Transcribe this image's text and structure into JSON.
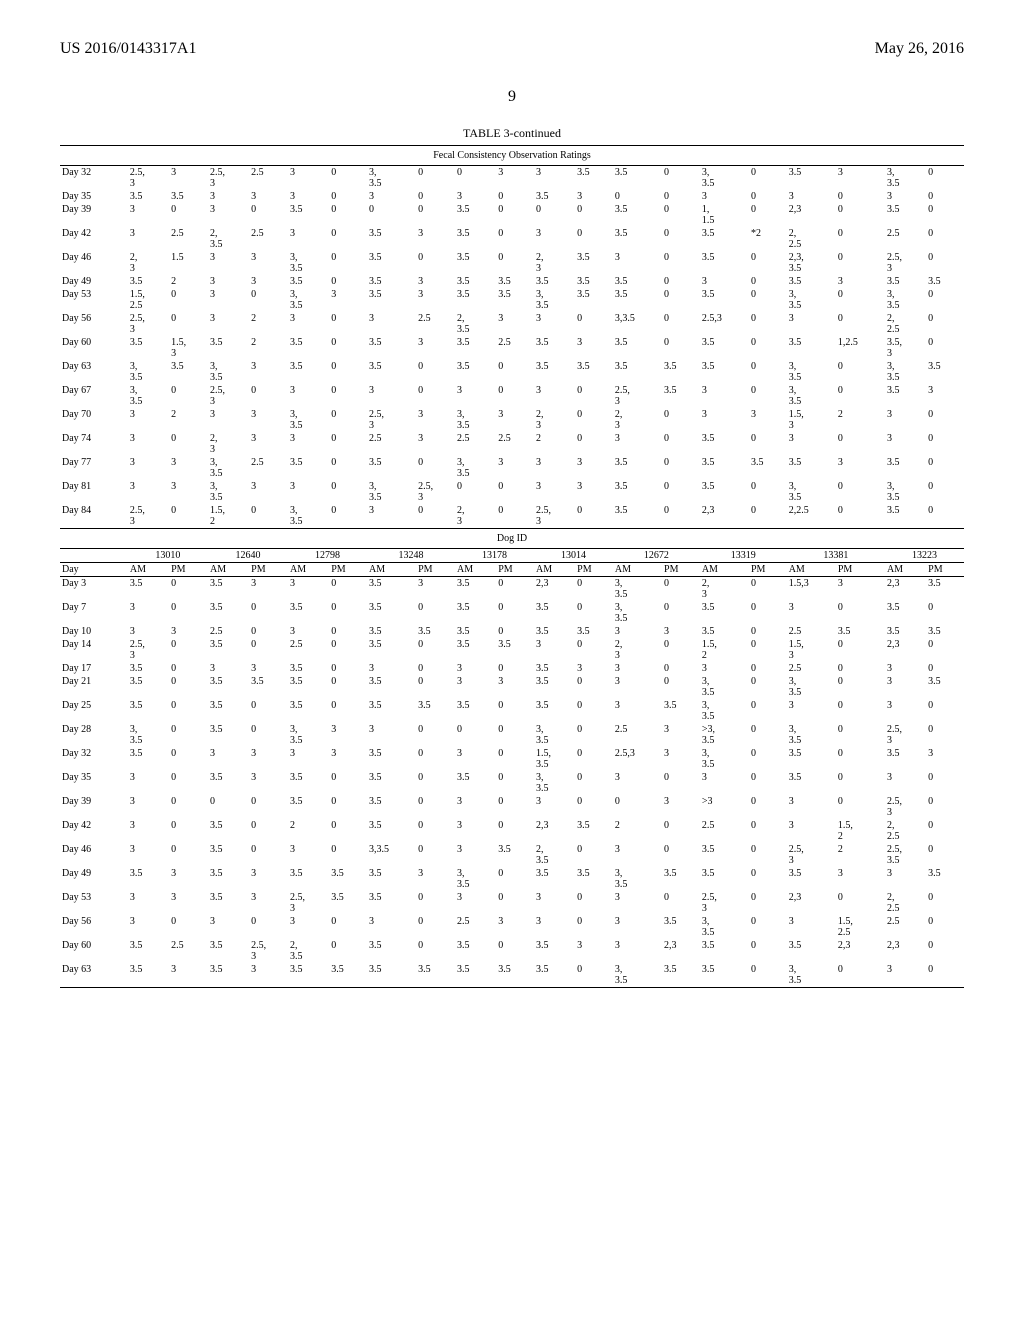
{
  "header": {
    "left": "US 2016/0143317A1",
    "right": "May 26, 2016"
  },
  "page_number": "9",
  "table_caption": "TABLE 3-continued",
  "fecal_title": "Fecal Consistency Observation Ratings",
  "dog_id_title": "Dog ID",
  "dog_ids": [
    "13010",
    "12640",
    "12798",
    "13248",
    "13178",
    "13014",
    "12672",
    "13319",
    "13381",
    "13223"
  ],
  "col_header_row": [
    "Day",
    "AM",
    "PM",
    "AM",
    "PM",
    "AM",
    "PM",
    "AM",
    "PM",
    "AM",
    "PM",
    "AM",
    "PM",
    "AM",
    "PM",
    "AM",
    "PM",
    "AM",
    "PM",
    "AM",
    "PM"
  ],
  "upper_rows": [
    [
      "Day 32",
      "2.5, 3",
      "3",
      "2.5, 3",
      "2.5",
      "3",
      "0",
      "3, 3.5",
      "0",
      "0",
      "3",
      "3",
      "3.5",
      "3.5",
      "0",
      "3, 3.5",
      "0",
      "3.5",
      "3",
      "3, 3.5",
      "0"
    ],
    [
      "Day 35",
      "3.5",
      "3.5",
      "3",
      "3",
      "3",
      "0",
      "3",
      "0",
      "3",
      "0",
      "3.5",
      "3",
      "0",
      "0",
      "3",
      "0",
      "3",
      "0",
      "3",
      "0"
    ],
    [
      "Day 39",
      "3",
      "0",
      "3",
      "0",
      "3.5",
      "0",
      "0",
      "0",
      "3.5",
      "0",
      "0",
      "0",
      "3.5",
      "0",
      "1, 1.5",
      "0",
      "2,3",
      "0",
      "3.5",
      "0"
    ],
    [
      "Day 42",
      "3",
      "2.5",
      "2, 3.5",
      "2.5",
      "3",
      "0",
      "3.5",
      "3",
      "3.5",
      "0",
      "3",
      "0",
      "3.5",
      "0",
      "3.5",
      "*2",
      "2, 2.5",
      "0",
      "2.5",
      "0"
    ],
    [
      "Day 46",
      "2, 3",
      "1.5",
      "3",
      "3",
      "3, 3.5",
      "0",
      "3.5",
      "0",
      "3.5",
      "0",
      "2, 3",
      "3.5",
      "3",
      "0",
      "3.5",
      "0",
      "2,3, 3.5",
      "0",
      "2.5, 3",
      "0"
    ],
    [
      "Day 49",
      "3.5",
      "2",
      "3",
      "3",
      "3.5",
      "0",
      "3.5",
      "3",
      "3.5",
      "3.5",
      "3.5",
      "3.5",
      "3.5",
      "0",
      "3",
      "0",
      "3.5",
      "3",
      "3.5",
      "3.5"
    ],
    [
      "Day 53",
      "1.5, 2.5",
      "0",
      "3",
      "0",
      "3, 3.5",
      "3",
      "3.5",
      "3",
      "3.5",
      "3.5",
      "3, 3.5",
      "3.5",
      "3.5",
      "0",
      "3.5",
      "0",
      "3, 3.5",
      "0",
      "3, 3.5",
      "0"
    ],
    [
      "Day 56",
      "2.5, 3",
      "0",
      "3",
      "2",
      "3",
      "0",
      "3",
      "2.5",
      "2, 3.5",
      "3",
      "3",
      "0",
      "3,3.5",
      "0",
      "2.5,3",
      "0",
      "3",
      "0",
      "2, 2.5",
      "0"
    ],
    [
      "Day 60",
      "3.5",
      "1.5, 3",
      "3.5",
      "2",
      "3.5",
      "0",
      "3.5",
      "3",
      "3.5",
      "2.5",
      "3.5",
      "3",
      "3.5",
      "0",
      "3.5",
      "0",
      "3.5",
      "1,2.5",
      "3.5, 3",
      "0"
    ],
    [
      "Day 63",
      "3, 3.5",
      "3.5",
      "3, 3.5",
      "3",
      "3.5",
      "0",
      "3.5",
      "0",
      "3.5",
      "0",
      "3.5",
      "3.5",
      "3.5",
      "3.5",
      "3.5",
      "0",
      "3, 3.5",
      "0",
      "3, 3.5",
      "3.5"
    ],
    [
      "Day 67",
      "3, 3.5",
      "0",
      "2.5, 3",
      "0",
      "3",
      "0",
      "3",
      "0",
      "3",
      "0",
      "3",
      "0",
      "2.5, 3",
      "3.5",
      "3",
      "0",
      "3, 3.5",
      "0",
      "3.5",
      "3"
    ],
    [
      "Day 70",
      "3",
      "2",
      "3",
      "3",
      "3, 3.5",
      "0",
      "2.5, 3",
      "3",
      "3, 3.5",
      "3",
      "2, 3",
      "0",
      "2, 3",
      "0",
      "3",
      "3",
      "1.5, 3",
      "2",
      "3",
      "0"
    ],
    [
      "Day 74",
      "3",
      "0",
      "2, 3",
      "3",
      "3",
      "0",
      "2.5",
      "3",
      "2.5",
      "2.5",
      "2",
      "0",
      "3",
      "0",
      "3.5",
      "0",
      "3",
      "0",
      "3",
      "0"
    ],
    [
      "Day 77",
      "3",
      "3",
      "3, 3.5",
      "2.5",
      "3.5",
      "0",
      "3.5",
      "0",
      "3, 3.5",
      "3",
      "3",
      "3",
      "3.5",
      "0",
      "3.5",
      "3.5",
      "3.5",
      "3",
      "3.5",
      "0"
    ],
    [
      "Day 81",
      "3",
      "3",
      "3, 3.5",
      "3",
      "3",
      "0",
      "3, 3.5",
      "2.5, 3",
      "0",
      "0",
      "3",
      "3",
      "3.5",
      "0",
      "3.5",
      "0",
      "3, 3.5",
      "0",
      "3, 3.5",
      "0"
    ],
    [
      "Day 84",
      "2.5, 3",
      "0",
      "1.5, 2",
      "0",
      "3, 3.5",
      "0",
      "3",
      "0",
      "2, 3",
      "0",
      "2.5, 3",
      "0",
      "3.5",
      "0",
      "2,3",
      "0",
      "2,2.5",
      "0",
      "3.5",
      "0"
    ]
  ],
  "lower_rows": [
    [
      "Day 3",
      "3.5",
      "0",
      "3.5",
      "3",
      "3",
      "0",
      "3.5",
      "3",
      "3.5",
      "0",
      "2,3",
      "0",
      "3, 3.5",
      "0",
      "2, 3",
      "0",
      "1.5,3",
      "3",
      "2,3",
      "3.5"
    ],
    [
      "Day 7",
      "3",
      "0",
      "3.5",
      "0",
      "3.5",
      "0",
      "3.5",
      "0",
      "3.5",
      "0",
      "3.5",
      "0",
      "3, 3.5",
      "0",
      "3.5",
      "0",
      "3",
      "0",
      "3.5",
      "0"
    ],
    [
      "Day 10",
      "3",
      "3",
      "2.5",
      "0",
      "3",
      "0",
      "3.5",
      "3.5",
      "3.5",
      "0",
      "3.5",
      "3.5",
      "3",
      "3",
      "3.5",
      "0",
      "2.5",
      "3.5",
      "3.5",
      "3.5"
    ],
    [
      "Day 14",
      "2.5, 3",
      "0",
      "3.5",
      "0",
      "2.5",
      "0",
      "3.5",
      "0",
      "3.5",
      "3.5",
      "3",
      "0",
      "2, 3",
      "0",
      "1.5, 2",
      "0",
      "1.5, 3",
      "0",
      "2,3",
      "0"
    ],
    [
      "Day 17",
      "3.5",
      "0",
      "3",
      "3",
      "3.5",
      "0",
      "3",
      "0",
      "3",
      "0",
      "3.5",
      "3",
      "3",
      "0",
      "3",
      "0",
      "2.5",
      "0",
      "3",
      "0"
    ],
    [
      "Day 21",
      "3.5",
      "0",
      "3.5",
      "3.5",
      "3.5",
      "0",
      "3.5",
      "0",
      "3",
      "3",
      "3.5",
      "0",
      "3",
      "0",
      "3, 3.5",
      "0",
      "3, 3.5",
      "0",
      "3",
      "3.5"
    ],
    [
      "Day 25",
      "3.5",
      "0",
      "3.5",
      "0",
      "3.5",
      "0",
      "3.5",
      "3.5",
      "3.5",
      "0",
      "3.5",
      "0",
      "3",
      "3.5",
      "3, 3.5",
      "0",
      "3",
      "0",
      "3",
      "0"
    ],
    [
      "Day 28",
      "3, 3.5",
      "0",
      "3.5",
      "0",
      "3, 3.5",
      "3",
      "3",
      "0",
      "0",
      "0",
      "3, 3.5",
      "0",
      "2.5",
      "3",
      ">3, 3.5",
      "0",
      "3, 3.5",
      "0",
      "2.5, 3",
      "0"
    ],
    [
      "Day 32",
      "3.5",
      "0",
      "3",
      "3",
      "3",
      "3",
      "3.5",
      "0",
      "3",
      "0",
      "1.5, 3.5",
      "0",
      "2.5,3",
      "3",
      "3, 3.5",
      "0",
      "3.5",
      "0",
      "3.5",
      "3"
    ],
    [
      "Day 35",
      "3",
      "0",
      "3.5",
      "3",
      "3.5",
      "0",
      "3.5",
      "0",
      "3.5",
      "0",
      "3, 3.5",
      "0",
      "3",
      "0",
      "3",
      "0",
      "3.5",
      "0",
      "3",
      "0"
    ],
    [
      "Day 39",
      "3",
      "0",
      "0",
      "0",
      "3.5",
      "0",
      "3.5",
      "0",
      "3",
      "0",
      "3",
      "0",
      "0",
      "3",
      ">3",
      "0",
      "3",
      "0",
      "2.5, 3",
      "0"
    ],
    [
      "Day 42",
      "3",
      "0",
      "3.5",
      "0",
      "2",
      "0",
      "3.5",
      "0",
      "3",
      "0",
      "2,3",
      "3.5",
      "2",
      "0",
      "2.5",
      "0",
      "3",
      "1.5, 2",
      "2, 2.5",
      "0"
    ],
    [
      "Day 46",
      "3",
      "0",
      "3.5",
      "0",
      "3",
      "0",
      "3,3.5",
      "0",
      "3",
      "3.5",
      "2, 3.5",
      "0",
      "3",
      "0",
      "3.5",
      "0",
      "2.5, 3",
      "2",
      "2.5, 3.5",
      "0"
    ],
    [
      "Day 49",
      "3.5",
      "3",
      "3.5",
      "3",
      "3.5",
      "3.5",
      "3.5",
      "3",
      "3, 3.5",
      "0",
      "3.5",
      "3.5",
      "3, 3.5",
      "3.5",
      "3.5",
      "0",
      "3.5",
      "3",
      "3",
      "3.5"
    ],
    [
      "Day 53",
      "3",
      "3",
      "3.5",
      "3",
      "2.5, 3",
      "3.5",
      "3.5",
      "0",
      "3",
      "0",
      "3",
      "0",
      "3",
      "0",
      "2.5, 3",
      "0",
      "2,3",
      "0",
      "2, 2.5",
      "0"
    ],
    [
      "Day 56",
      "3",
      "0",
      "3",
      "0",
      "3",
      "0",
      "3",
      "0",
      "2.5",
      "3",
      "3",
      "0",
      "3",
      "3.5",
      "3, 3.5",
      "0",
      "3",
      "1.5, 2.5",
      "2.5",
      "0"
    ],
    [
      "Day 60",
      "3.5",
      "2.5",
      "3.5",
      "2.5, 3",
      "2, 3.5",
      "0",
      "3.5",
      "0",
      "3.5",
      "0",
      "3.5",
      "3",
      "3",
      "2,3",
      "3.5",
      "0",
      "3.5",
      "2,3",
      "2,3",
      "0"
    ],
    [
      "Day 63",
      "3.5",
      "3",
      "3.5",
      "3",
      "3.5",
      "3.5",
      "3.5",
      "3.5",
      "3.5",
      "3.5",
      "3.5",
      "0",
      "3, 3.5",
      "3.5",
      "3.5",
      "0",
      "3, 3.5",
      "0",
      "3",
      "0"
    ]
  ]
}
